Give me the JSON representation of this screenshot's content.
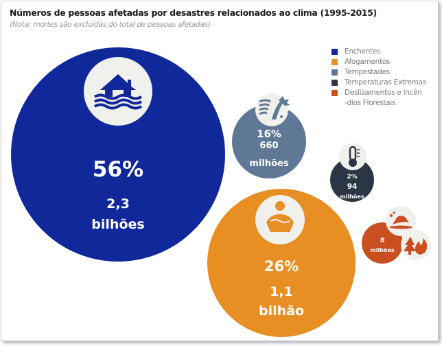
{
  "title": "Números de pessoas afetadas por desastres relacionados ao clima (1995-2015)",
  "subtitle": "(Nota: mortes são excluídas do total de pessoas afetadas)",
  "legend": [
    {
      "label": "Enchentes",
      "color": "#10289a"
    },
    {
      "label": "Afogamentos",
      "color": "#e88f24"
    },
    {
      "label": "Tempestades",
      "color": "#5f7895"
    },
    {
      "label": "Temperaturas Extremas",
      "color": "#2a3545"
    },
    {
      "label": "Deslizamentos e Incên\n-dios Florestais",
      "color": "#c94e20"
    }
  ],
  "chart_data": {
    "type": "bubble",
    "title": "Números de pessoas afetadas por desastres relacionados ao clima (1995-2015)",
    "subtitle": "(Nota: mortes são excluídas do total de pessoas afetadas)",
    "legend_position": "top-right",
    "series": [
      {
        "name": "Enchentes",
        "percent": 56,
        "percent_label": "56%",
        "value_label": "2,3",
        "unit_label": "bilhões",
        "people": 2300000000,
        "color": "#10289a",
        "icon": "flooded-house-icon"
      },
      {
        "name": "Afogamentos",
        "percent": 26,
        "percent_label": "26%",
        "value_label": "1,1",
        "unit_label": "bilhão",
        "people": 1100000000,
        "color": "#e88f24",
        "icon": "drowning-person-icon"
      },
      {
        "name": "Tempestades",
        "percent": 16,
        "percent_label": "16%",
        "value_label": "660",
        "unit_label": "milhões",
        "people": 660000000,
        "color": "#5f7895",
        "icon": "storm-wind-tree-icon"
      },
      {
        "name": "Temperaturas Extremas",
        "percent": 2,
        "percent_label": "2%",
        "value_label": "94",
        "unit_label": "milhões",
        "people": 94000000,
        "color": "#2a3545",
        "icon": "thermometer-icon"
      },
      {
        "name": "Deslizamentos e Incêndios Florestais",
        "percent": null,
        "percent_label": "",
        "value_label": "8",
        "unit_label": "milhões",
        "people": 8000000,
        "color": "#c94e20",
        "icon": "landslide-fire-icon"
      }
    ]
  }
}
